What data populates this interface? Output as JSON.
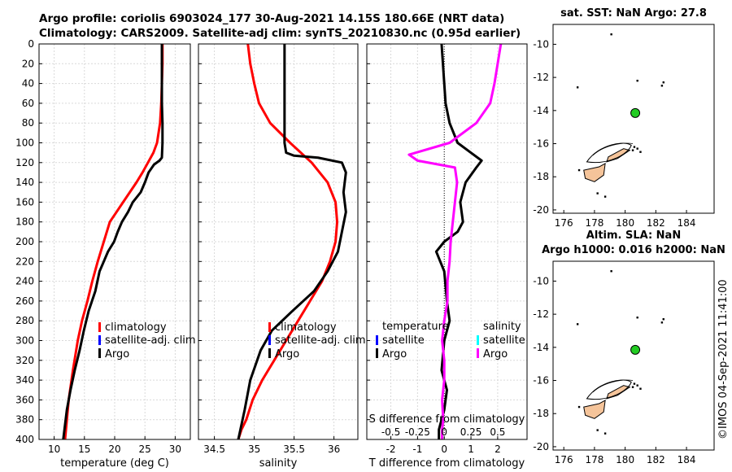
{
  "header": {
    "line1": "Argo profile: coriolis 6903024_177 30-Aug-2021 14.15S 180.66E (NRT data)",
    "line2": "Climatology: CARS2009. Satellite-adj clim: synTS_20210830.nc (0.95d earlier)"
  },
  "watermark": "©IMOS 04-Sep-2021 11:41:00",
  "colors": {
    "climatology": "#ff0000",
    "satellite": "#0000ff",
    "argo": "#000000",
    "salinity_argo": "#ff00ff",
    "salinity_sat": "#00ffff",
    "land": "#f5c49a"
  },
  "chart_data": [
    {
      "type": "line",
      "name": "temperature-panel",
      "xlabel": "temperature (deg C)",
      "ylabel": "",
      "xlim": [
        7.5,
        32.5
      ],
      "ylim": [
        400,
        0
      ],
      "xticks": [
        "10",
        "15",
        "20",
        "25",
        "30"
      ],
      "xtick_values": [
        10,
        15,
        20,
        25,
        30
      ],
      "yticks": [
        "0",
        "20",
        "40",
        "60",
        "80",
        "100",
        "120",
        "140",
        "160",
        "180",
        "200",
        "220",
        "240",
        "260",
        "280",
        "300",
        "320",
        "340",
        "360",
        "380",
        "400"
      ],
      "ytick_values": [
        0,
        20,
        40,
        60,
        80,
        100,
        120,
        140,
        160,
        180,
        200,
        220,
        240,
        260,
        280,
        300,
        320,
        340,
        360,
        380,
        400
      ],
      "legend": [
        "climatology",
        "satellite-adj. clim",
        "Argo"
      ],
      "series": [
        {
          "name": "climatology",
          "color": "#ff0000",
          "x": [
            27.9,
            27.9,
            27.8,
            27.7,
            27.5,
            27.0,
            26.4,
            25.5,
            24.6,
            23.6,
            22.5,
            21.4,
            20.3,
            19.2,
            18.2,
            17.2,
            16.3,
            15.5,
            14.6,
            13.9,
            13.1,
            12.4,
            11.8
          ],
          "y": [
            0,
            20,
            40,
            60,
            80,
            100,
            110,
            120,
            130,
            140,
            150,
            160,
            170,
            180,
            200,
            220,
            240,
            260,
            280,
            300,
            330,
            360,
            400
          ]
        },
        {
          "name": "Argo",
          "color": "#000000",
          "x": [
            27.8,
            27.8,
            27.8,
            27.8,
            27.9,
            27.9,
            27.8,
            27.4,
            26.5,
            25.6,
            25.0,
            24.3,
            23.0,
            22.2,
            21.2,
            20.5,
            19.9,
            18.9,
            17.5,
            16.8,
            15.7,
            14.9,
            14.2,
            13.4,
            12.7,
            12.1,
            11.5
          ],
          "y": [
            0,
            20,
            40,
            60,
            80,
            100,
            115,
            118,
            122,
            130,
            140,
            150,
            160,
            170,
            180,
            190,
            200,
            210,
            230,
            250,
            270,
            290,
            310,
            330,
            350,
            370,
            400
          ]
        }
      ]
    },
    {
      "type": "line",
      "name": "salinity-panel",
      "xlabel": "salinity",
      "xlim": [
        34.3,
        36.3
      ],
      "ylim": [
        400,
        0
      ],
      "xticks": [
        "34.5",
        "35",
        "35.5",
        "36"
      ],
      "xtick_values": [
        34.5,
        35.0,
        35.5,
        36.0
      ],
      "legend": [
        "climatology",
        "satellite-adj. clim",
        "Argo"
      ],
      "series": [
        {
          "name": "climatology",
          "color": "#ff0000",
          "x": [
            34.92,
            34.95,
            35.0,
            35.06,
            35.2,
            35.45,
            35.72,
            35.92,
            36.02,
            36.04,
            36.02,
            35.95,
            35.85,
            35.7,
            35.55,
            35.4,
            35.25,
            35.1,
            34.98,
            34.9,
            34.84,
            34.8
          ],
          "y": [
            0,
            20,
            40,
            60,
            80,
            100,
            120,
            140,
            160,
            180,
            200,
            220,
            240,
            260,
            280,
            300,
            320,
            340,
            360,
            380,
            390,
            400
          ]
        },
        {
          "name": "Argo",
          "color": "#000000",
          "x": [
            35.38,
            35.38,
            35.38,
            35.38,
            35.38,
            35.38,
            35.4,
            35.5,
            35.8,
            36.1,
            36.15,
            36.12,
            36.15,
            36.1,
            36.05,
            35.92,
            35.75,
            35.48,
            35.22,
            35.08,
            34.95,
            34.88,
            34.8
          ],
          "y": [
            0,
            20,
            40,
            60,
            80,
            100,
            110,
            113,
            115,
            120,
            130,
            150,
            170,
            190,
            210,
            230,
            250,
            270,
            290,
            310,
            340,
            370,
            400
          ]
        }
      ]
    },
    {
      "type": "line",
      "name": "difference-panel",
      "xlabel": "T difference from climatology",
      "top_xlabel": "S difference from climatology",
      "xlim": [
        -2.9,
        3.1
      ],
      "ylim": [
        400,
        0
      ],
      "xticks": [
        "-2",
        "-1",
        "0",
        "1",
        "2"
      ],
      "xtick_values": [
        -2,
        -1,
        0,
        1,
        2
      ],
      "top_xticks": [
        "-0.5",
        "-0.25",
        "0",
        "0.25",
        "0.5"
      ],
      "top_xtick_values": [
        -0.5,
        -0.25,
        0,
        0.25,
        0.5
      ],
      "legend_temperature_title": "temperature",
      "legend_salinity_title": "salinity",
      "legend_temperature": [
        "satellite",
        "Argo"
      ],
      "legend_salinity": [
        "satellite",
        "Argo"
      ],
      "series": [
        {
          "name": "T Argo",
          "color": "#000000",
          "axis": "T",
          "x": [
            -0.1,
            -0.05,
            0.0,
            0.05,
            0.2,
            0.5,
            1.0,
            1.4,
            1.2,
            0.8,
            0.6,
            0.7,
            0.5,
            0.0,
            -0.3,
            0.0,
            0.1,
            0.2,
            0.0,
            -0.1,
            0.1,
            0.0,
            -0.2,
            -0.2
          ],
          "y": [
            0,
            20,
            40,
            60,
            80,
            100,
            110,
            118,
            125,
            140,
            160,
            180,
            190,
            200,
            210,
            230,
            260,
            280,
            300,
            330,
            350,
            370,
            390,
            400
          ]
        },
        {
          "name": "S Argo",
          "color": "#ff00ff",
          "axis": "S",
          "x": [
            0.53,
            0.5,
            0.47,
            0.43,
            0.3,
            0.05,
            -0.33,
            -0.25,
            0.1,
            0.12,
            0.1,
            0.08,
            0.06,
            0.05,
            0.03,
            0.03,
            0.0,
            -0.02,
            0.0,
            0.0,
            -0.02,
            -0.01,
            -0.02,
            -0.02
          ],
          "y": [
            0,
            20,
            40,
            60,
            80,
            100,
            112,
            118,
            125,
            140,
            160,
            180,
            200,
            220,
            240,
            260,
            280,
            300,
            320,
            340,
            360,
            380,
            390,
            400
          ]
        }
      ]
    }
  ],
  "maps": [
    {
      "title": "sat. SST: NaN Argo: 27.8",
      "xticks": [
        "176",
        "178",
        "180",
        "182",
        "184"
      ],
      "xtick_values": [
        176,
        178,
        180,
        182,
        184
      ],
      "yticks": [
        "-10",
        "-12",
        "-14",
        "-16",
        "-18",
        "-20"
      ],
      "ytick_values": [
        -10,
        -12,
        -14,
        -16,
        -18,
        -20
      ],
      "xlim": [
        175.3,
        185.8
      ],
      "ylim": [
        -20.2,
        -8.8
      ],
      "argo_position": {
        "lon": 180.66,
        "lat": -14.15
      }
    },
    {
      "title1": "Altim. SLA: NaN",
      "title2": "Argo h1000: 0.016 h2000: NaN",
      "xticks": [
        "176",
        "178",
        "180",
        "182",
        "184"
      ],
      "xtick_values": [
        176,
        178,
        180,
        182,
        184
      ],
      "yticks": [
        "-10",
        "-12",
        "-14",
        "-16",
        "-18",
        "-20"
      ],
      "ytick_values": [
        -10,
        -12,
        -14,
        -16,
        -18,
        -20
      ],
      "xlim": [
        175.3,
        185.8
      ],
      "ylim": [
        -20.2,
        -8.8
      ],
      "argo_position": {
        "lon": 180.66,
        "lat": -14.15
      }
    }
  ]
}
